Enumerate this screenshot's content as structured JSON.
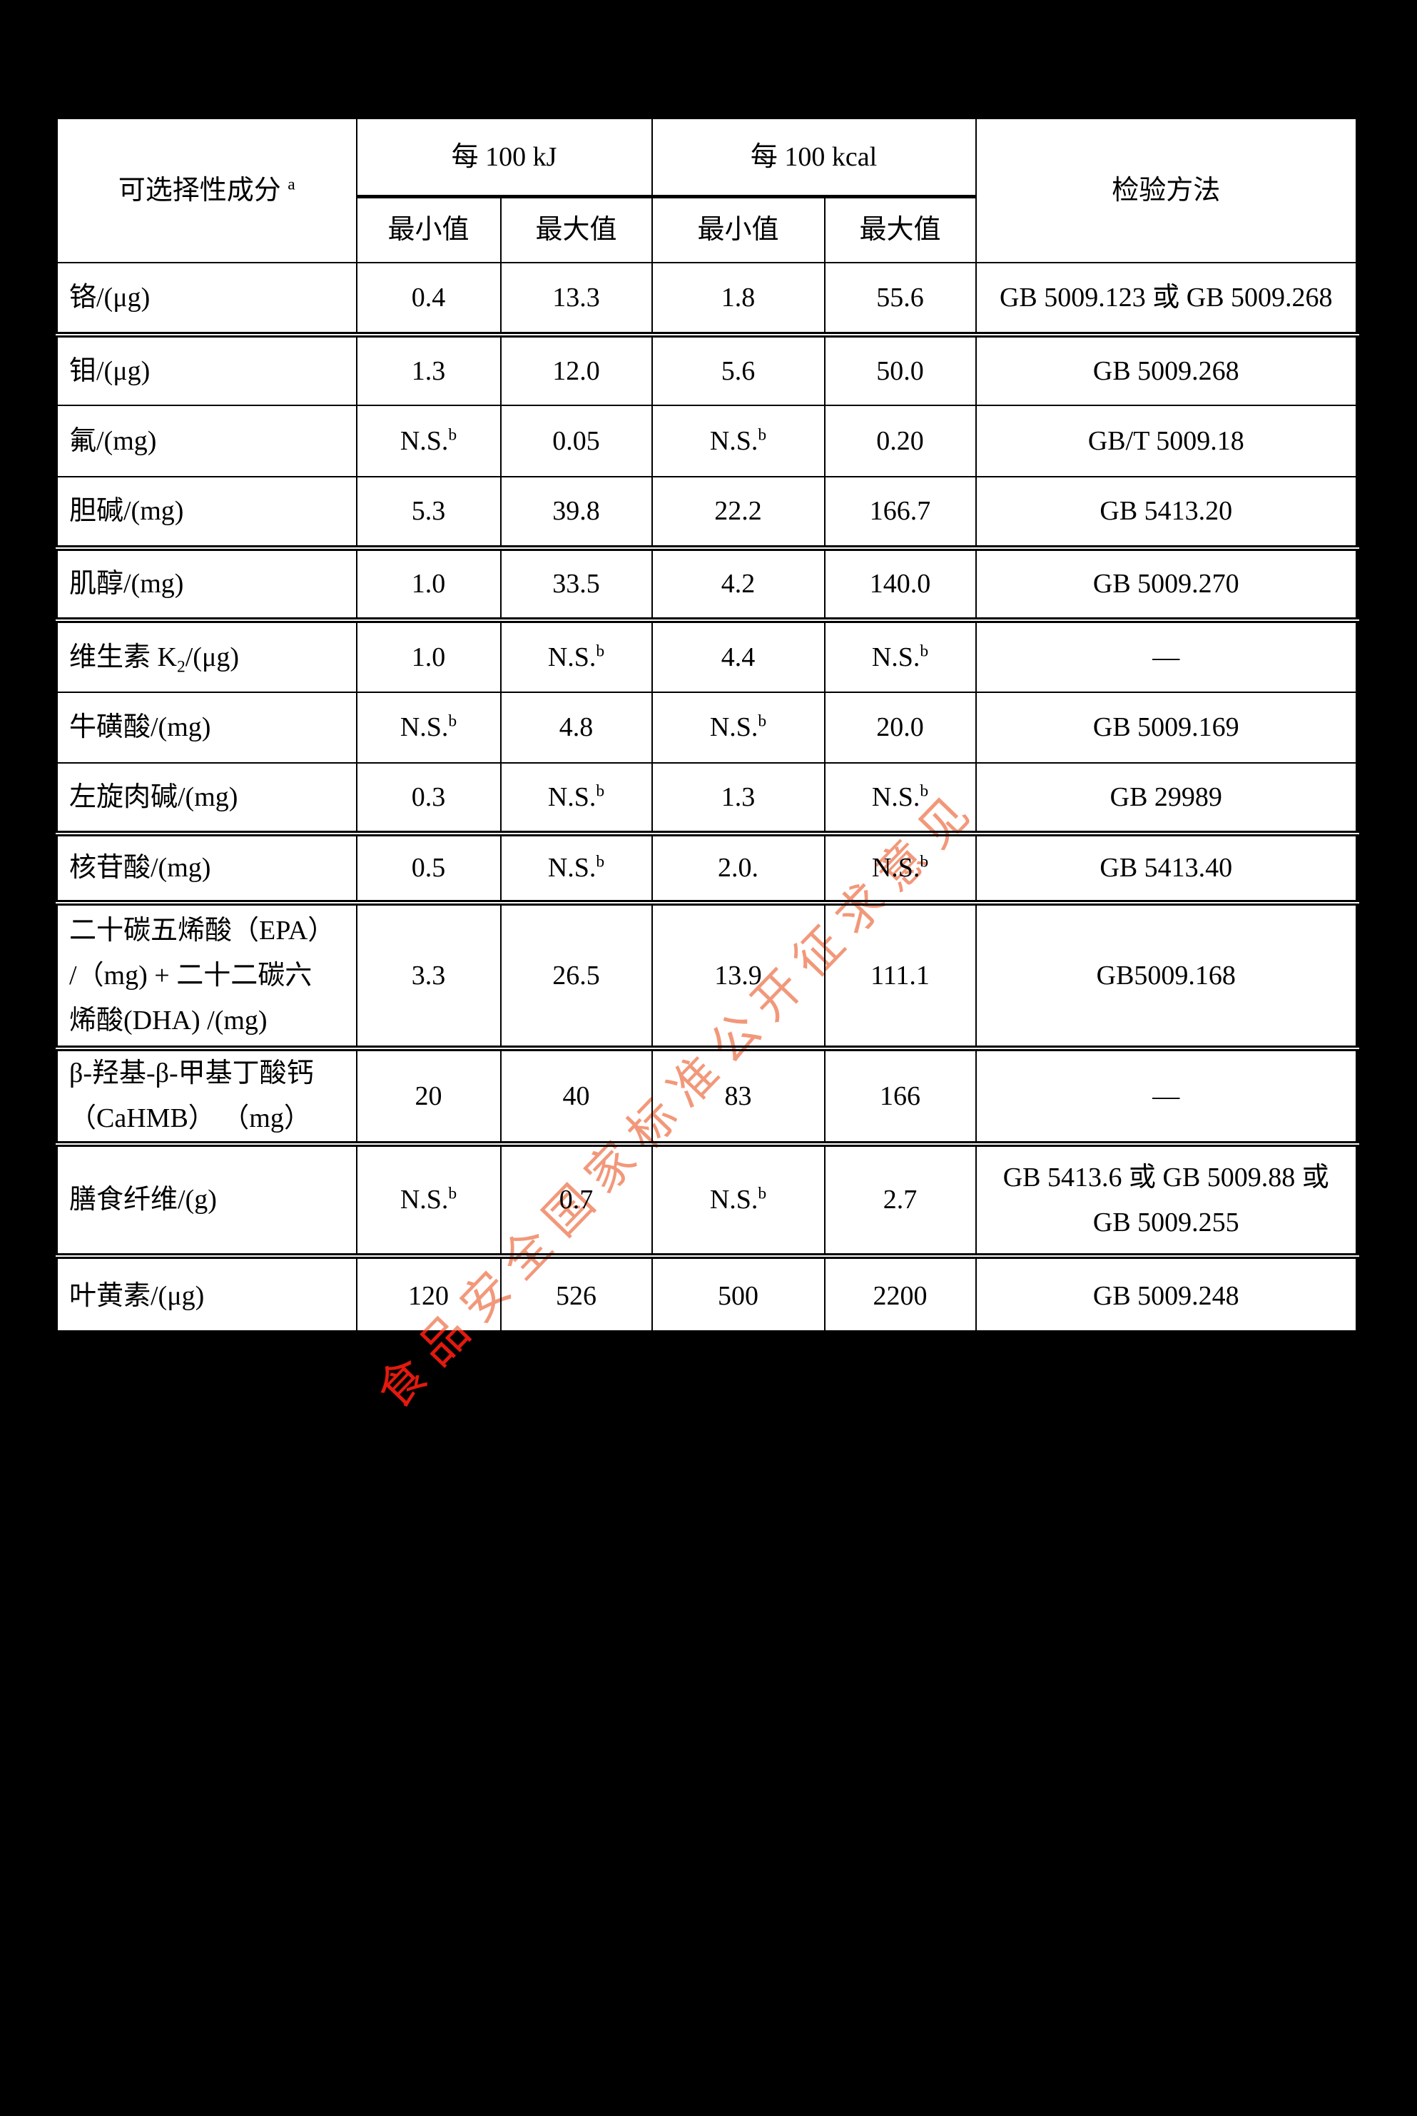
{
  "page": {
    "background_color": "#000000",
    "paper_color": "#ffffff",
    "ink_color": "#000000"
  },
  "watermark": {
    "text": "食品安全国家标准公开征求意见",
    "color_on_paper": "#F2987A",
    "color_on_black": "#E3190E"
  },
  "table": {
    "header": {
      "component": "可选择性成分 ^a^",
      "per_100kj": "每 100 kJ",
      "per_100kcal": "每 100 kcal",
      "min_label": "最小值",
      "max_label": "最大值",
      "method": "检验方法"
    },
    "rows": [
      {
        "name_lines": [
          "铬/(μg)"
        ],
        "kj_min": "0.4",
        "kj_max": "13.3",
        "kcal_min": "1.8",
        "kcal_max": "55.6",
        "method_lines": [
          "GB 5009.123 或 GB 5009.268"
        ]
      },
      {
        "name_lines": [
          "钼/(μg)"
        ],
        "kj_min": "1.3",
        "kj_max": "12.0",
        "kcal_min": "5.6",
        "kcal_max": "50.0",
        "method_lines": [
          "GB 5009.268"
        ]
      },
      {
        "name_lines": [
          "氟/(mg)"
        ],
        "kj_min": "N.S.^b^",
        "kj_max": "0.05",
        "kcal_min": "N.S.^b^",
        "kcal_max": "0.20",
        "method_lines": [
          "GB/T 5009.18"
        ]
      },
      {
        "name_lines": [
          "胆碱/(mg)"
        ],
        "kj_min": "5.3",
        "kj_max": "39.8",
        "kcal_min": "22.2",
        "kcal_max": "166.7",
        "method_lines": [
          "GB 5413.20"
        ]
      },
      {
        "name_lines": [
          "肌醇/(mg)"
        ],
        "kj_min": "1.0",
        "kj_max": "33.5",
        "kcal_min": "4.2",
        "kcal_max": "140.0",
        "method_lines": [
          "GB 5009.270"
        ]
      },
      {
        "name_lines": [
          "维生素 K~2~/(μg)"
        ],
        "kj_min": "1.0",
        "kj_max": "N.S.^b^",
        "kcal_min": "4.4",
        "kcal_max": "N.S.^b^",
        "method_lines": [
          "—"
        ]
      },
      {
        "name_lines": [
          "牛磺酸/(mg)"
        ],
        "kj_min": "N.S.^b^",
        "kj_max": "4.8",
        "kcal_min": "N.S.^b^",
        "kcal_max": "20.0",
        "method_lines": [
          "GB 5009.169"
        ]
      },
      {
        "name_lines": [
          "左旋肉碱/(mg)"
        ],
        "kj_min": "0.3",
        "kj_max": "N.S.^b^",
        "kcal_min": "1.3",
        "kcal_max": "N.S.^b^",
        "method_lines": [
          "GB 29989"
        ]
      },
      {
        "name_lines": [
          "核苷酸/(mg)"
        ],
        "kj_min": "0.5",
        "kj_max": "N.S.^b^",
        "kcal_min": "2.0.",
        "kcal_max": "N.S.^b^",
        "method_lines": [
          "GB 5413.40"
        ]
      },
      {
        "name_lines": [
          "二十碳五烯酸（EPA）",
          "/（mg) +  二十二碳六",
          "烯酸(DHA) /(mg)"
        ],
        "kj_min": "3.3",
        "kj_max": "26.5",
        "kcal_min": "13.9",
        "kcal_max": "111.1",
        "method_lines": [
          "GB5009.168"
        ]
      },
      {
        "name_lines": [
          "β-羟基-β-甲基丁酸钙",
          "（CaHMB） （mg）"
        ],
        "kj_min": "20",
        "kj_max": "40",
        "kcal_min": "83",
        "kcal_max": "166",
        "method_lines": [
          "—"
        ]
      },
      {
        "name_lines": [
          "膳食纤维/(g)"
        ],
        "kj_min": "N.S.^b^",
        "kj_max": "0.7",
        "kcal_min": "N.S.^b^",
        "kcal_max": "2.7",
        "method_lines": [
          "GB 5413.6 或 GB 5009.88 或",
          "GB 5009.255"
        ]
      },
      {
        "name_lines": [
          "叶黄素/(μg)"
        ],
        "kj_min": "120",
        "kj_max": "526",
        "kcal_min": "500",
        "kcal_max": "2200",
        "method_lines": [
          "GB 5009.248"
        ]
      }
    ]
  }
}
